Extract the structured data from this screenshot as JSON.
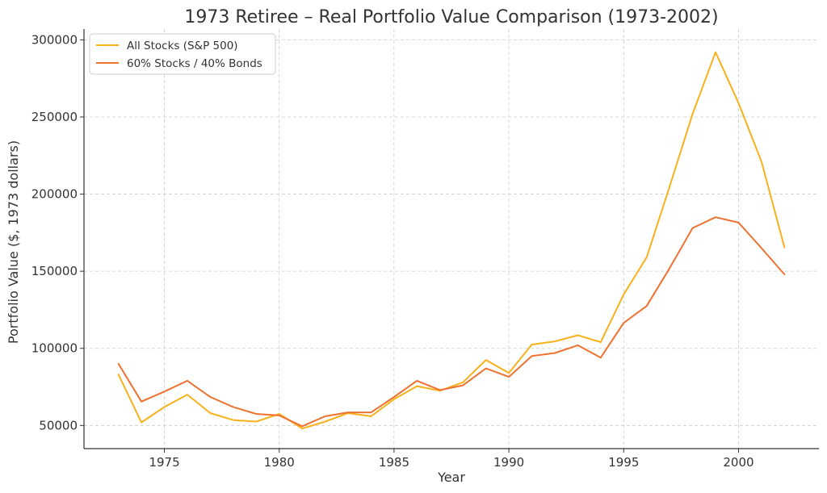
{
  "chart_data": {
    "type": "line",
    "title": "1973 Retiree – Real Portfolio Value Comparison (1973-2002)",
    "xlabel": "Year",
    "ylabel": "Portfolio Value ($, 1973 dollars)",
    "xlim": [
      1971.5,
      2003.5
    ],
    "ylim": [
      35000,
      307000
    ],
    "grid": true,
    "legend_position": "top-left",
    "x_ticks": [
      1975,
      1980,
      1985,
      1990,
      1995,
      2000
    ],
    "y_ticks": [
      50000,
      100000,
      150000,
      200000,
      250000,
      300000
    ],
    "x": [
      1973,
      1974,
      1975,
      1976,
      1977,
      1978,
      1979,
      1980,
      1981,
      1982,
      1983,
      1984,
      1985,
      1986,
      1987,
      1988,
      1989,
      1990,
      1991,
      1992,
      1993,
      1994,
      1995,
      1996,
      1997,
      1998,
      1999,
      2000,
      2001,
      2002
    ],
    "series": [
      {
        "name": "All Stocks (S&P 500)",
        "color": "#F7B11B",
        "values": [
          83000,
          52000,
          62000,
          70000,
          58000,
          53500,
          52500,
          57500,
          48000,
          52500,
          58000,
          56000,
          67000,
          75500,
          72500,
          78000,
          92500,
          84000,
          102500,
          104500,
          108500,
          104000,
          135000,
          159000,
          205000,
          252000,
          292000,
          259000,
          221000,
          165500
        ]
      },
      {
        "name": "60% Stocks / 40% Bonds",
        "color": "#EE7230",
        "values": [
          90000,
          65500,
          72000,
          79000,
          68500,
          62000,
          57500,
          56500,
          49500,
          56000,
          58500,
          58500,
          68500,
          79000,
          73000,
          76000,
          87000,
          81500,
          95000,
          97000,
          102000,
          94000,
          116500,
          127500,
          152000,
          178000,
          185000,
          181500,
          165000,
          148000
        ]
      }
    ]
  }
}
